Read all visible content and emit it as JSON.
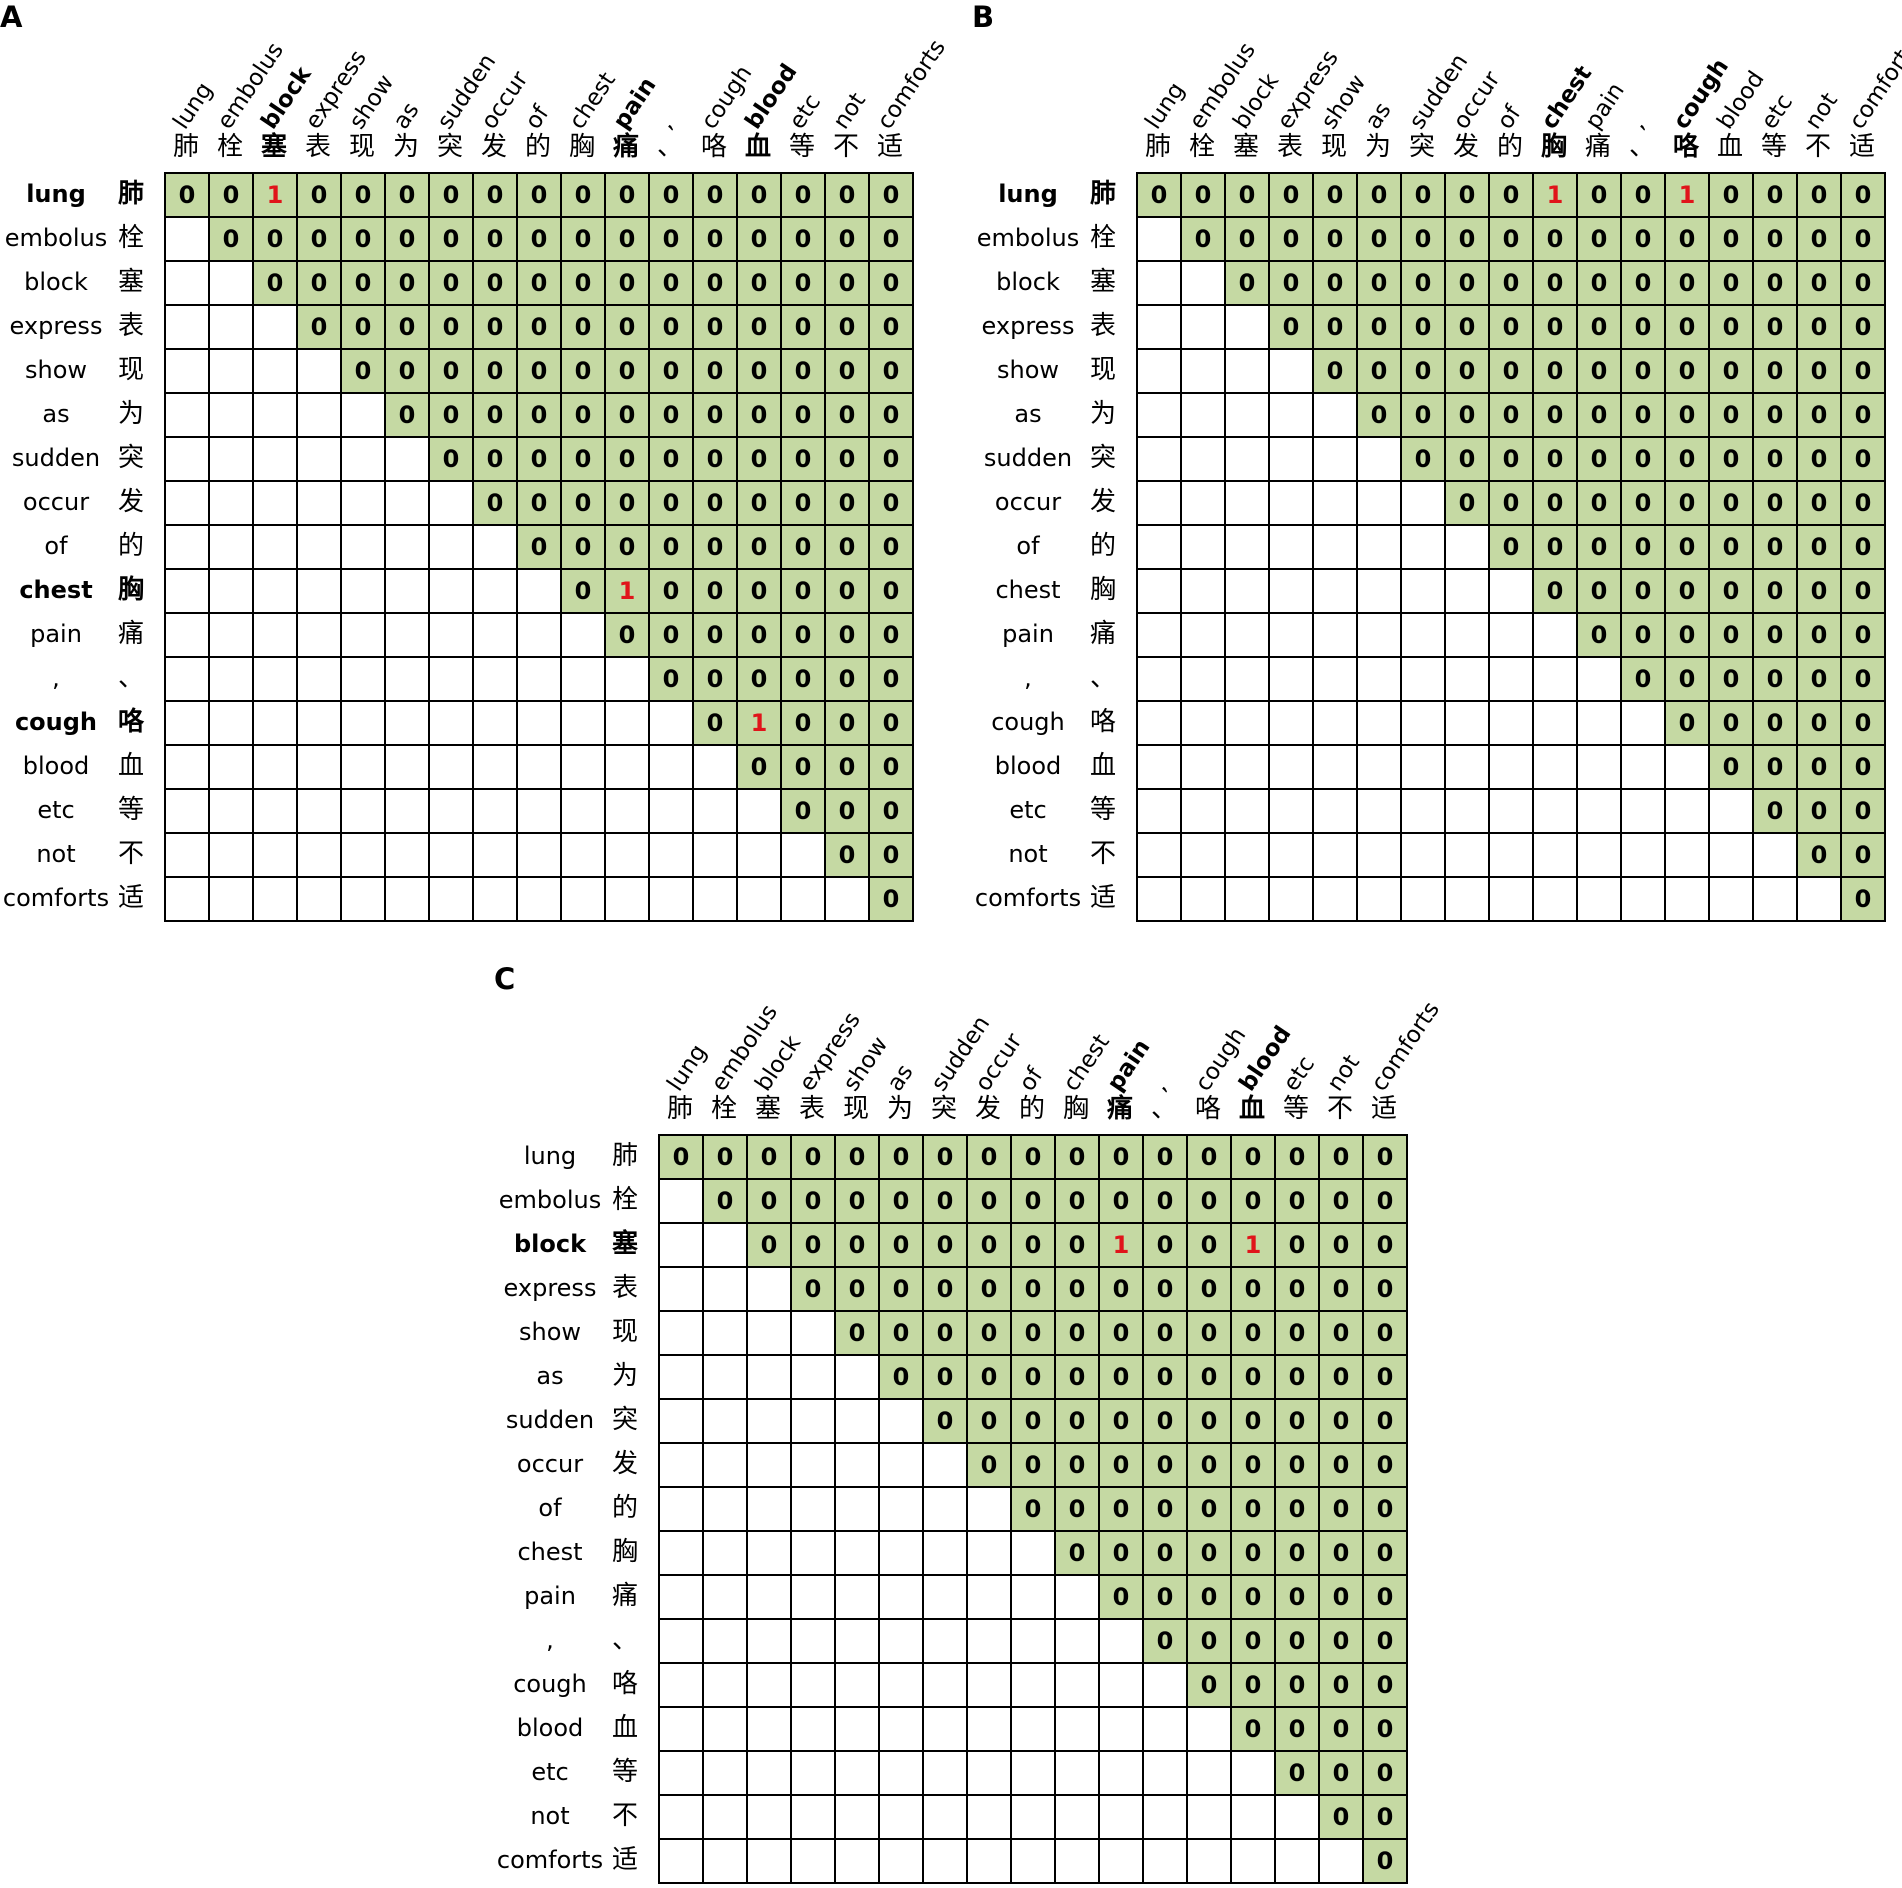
{
  "words_en": [
    "lung",
    "embolus",
    "block",
    "express",
    "show",
    "as",
    "sudden",
    "occur",
    "of",
    "chest",
    "pain",
    ",",
    "cough",
    "blood",
    "etc",
    "not",
    "comforts"
  ],
  "words_zh": [
    "肺",
    "栓",
    "塞",
    "表",
    "现",
    "为",
    "突",
    "发",
    "的",
    "胸",
    "痛",
    "、",
    "咯",
    "血",
    "等",
    "不",
    "适"
  ],
  "colors": {
    "upper_fill": "#c5d9a3",
    "one_text": "#e0141a",
    "grid_line": "#000000"
  },
  "panels": [
    {
      "label": "A",
      "bold_rows": [
        0,
        9,
        12
      ],
      "bold_cols": [
        2,
        10,
        13
      ],
      "ones": [
        [
          0,
          2
        ],
        [
          9,
          10
        ],
        [
          12,
          13
        ]
      ]
    },
    {
      "label": "B",
      "bold_rows": [
        0
      ],
      "bold_cols": [
        9,
        12
      ],
      "ones": [
        [
          0,
          9
        ],
        [
          0,
          12
        ]
      ]
    },
    {
      "label": "C",
      "bold_rows": [
        2
      ],
      "bold_cols": [
        10,
        13
      ],
      "ones": [
        [
          2,
          10
        ],
        [
          2,
          13
        ]
      ]
    }
  ]
}
